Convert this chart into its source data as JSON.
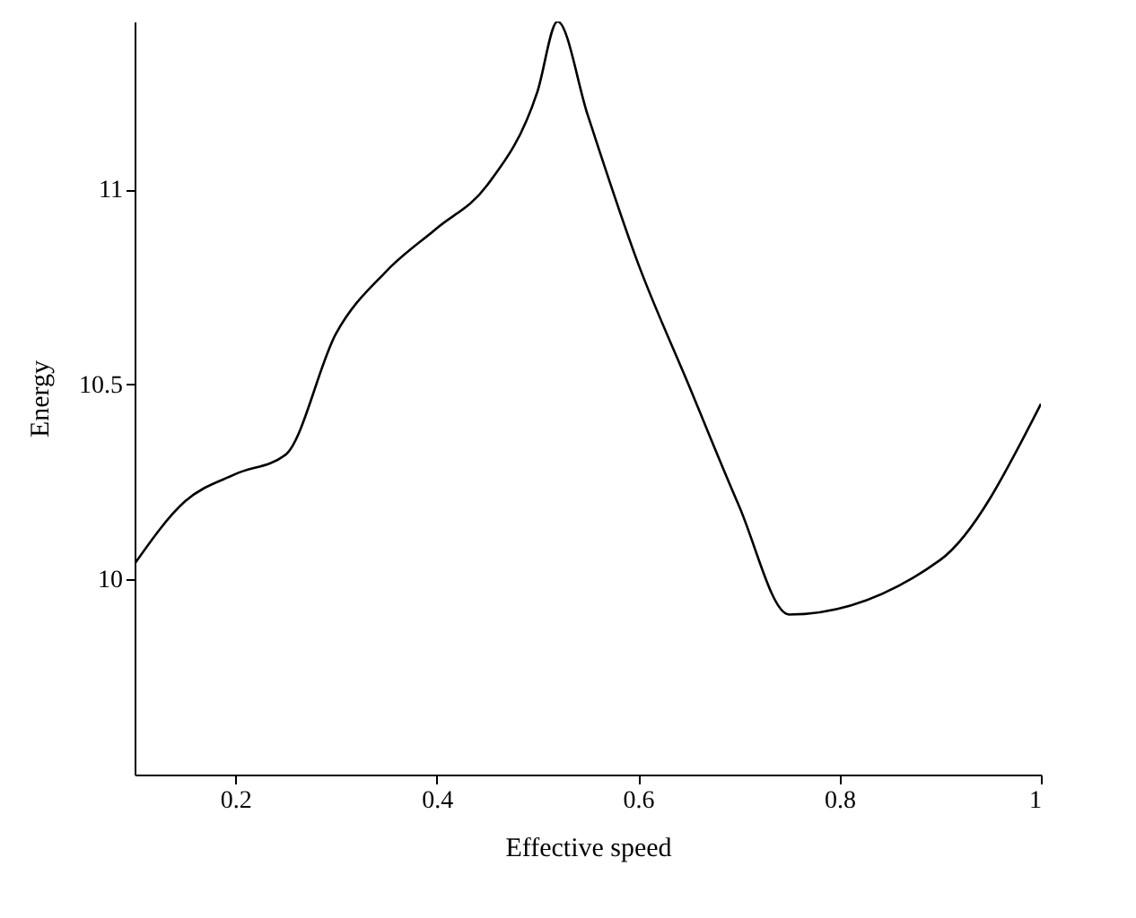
{
  "chart_data": {
    "type": "line",
    "xlabel": "Effective speed",
    "ylabel": "Energy",
    "x": [
      0.1,
      0.15,
      0.2,
      0.25,
      0.3,
      0.35,
      0.4,
      0.45,
      0.5,
      0.52,
      0.55,
      0.6,
      0.65,
      0.7,
      0.75,
      0.9,
      1
    ],
    "series": [
      {
        "color": "#000000",
        "values": [
          10.04,
          10.2,
          10.27,
          10.32,
          10.63,
          10.79,
          10.9,
          11.01,
          11.25,
          11.43,
          11.19,
          10.81,
          10.5,
          10.19,
          9.91,
          10.05,
          10.45
        ]
      }
    ],
    "xlim": [
      0.1,
      1
    ],
    "xticks": [
      0.2,
      0.4,
      0.6,
      0.8,
      1
    ],
    "ylim": [
      9.5,
      11.43
    ],
    "yticks": [
      10,
      10.5,
      11
    ],
    "grid": false,
    "marker": "none",
    "line_style": "solid"
  }
}
